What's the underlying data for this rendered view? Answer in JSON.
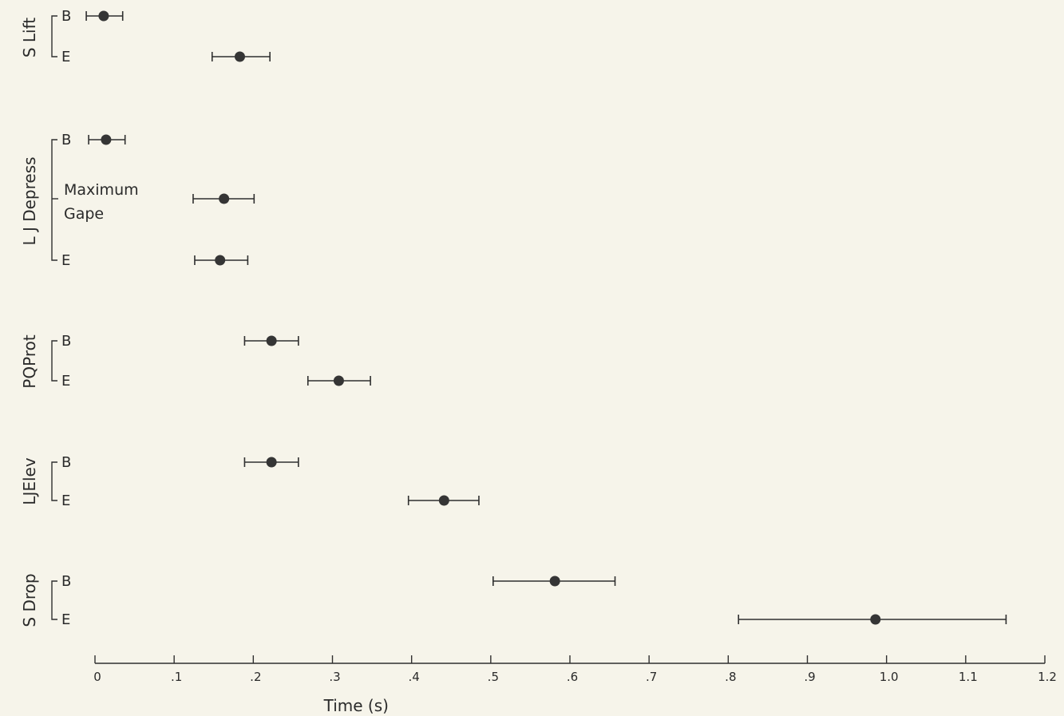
{
  "chart_data": {
    "type": "scatter",
    "title": "",
    "xlabel": "Time (s)",
    "ylabel": "",
    "xlim": [
      0,
      1.2
    ],
    "x_ticks": [
      {
        "value": 0,
        "label": "0"
      },
      {
        "value": 0.1,
        "label": ".1"
      },
      {
        "value": 0.2,
        "label": ".2"
      },
      {
        "value": 0.3,
        "label": ".3"
      },
      {
        "value": 0.4,
        "label": ".4"
      },
      {
        "value": 0.5,
        "label": ".5"
      },
      {
        "value": 0.6,
        "label": ".6"
      },
      {
        "value": 0.7,
        "label": ".7"
      },
      {
        "value": 0.8,
        "label": ".8"
      },
      {
        "value": 0.9,
        "label": ".9"
      },
      {
        "value": 1.0,
        "label": "1.0"
      },
      {
        "value": 1.1,
        "label": "1.1"
      },
      {
        "value": 1.2,
        "label": "1.2"
      }
    ],
    "grid": false,
    "groups": [
      {
        "name": "S Lift",
        "rows": [
          {
            "label": "B",
            "mean": 0.011,
            "low": -0.011,
            "high": 0.035
          },
          {
            "label": "E",
            "mean": 0.183,
            "low": 0.148,
            "high": 0.221
          }
        ]
      },
      {
        "name": "L J Depress",
        "note": "Maximum Gape",
        "rows": [
          {
            "label": "B",
            "mean": 0.014,
            "low": -0.008,
            "high": 0.038
          },
          {
            "label": "",
            "mean": 0.163,
            "low": 0.124,
            "high": 0.201
          },
          {
            "label": "E",
            "mean": 0.158,
            "low": 0.126,
            "high": 0.193
          }
        ]
      },
      {
        "name": "PQProt",
        "rows": [
          {
            "label": "B",
            "mean": 0.223,
            "low": 0.189,
            "high": 0.257
          },
          {
            "label": "E",
            "mean": 0.308,
            "low": 0.269,
            "high": 0.348
          }
        ]
      },
      {
        "name": "LJElev",
        "rows": [
          {
            "label": "B",
            "mean": 0.223,
            "low": 0.189,
            "high": 0.257
          },
          {
            "label": "E",
            "mean": 0.441,
            "low": 0.396,
            "high": 0.485
          }
        ]
      },
      {
        "name": "S Drop",
        "rows": [
          {
            "label": "B",
            "mean": 0.581,
            "low": 0.503,
            "high": 0.657
          },
          {
            "label": "E",
            "mean": 0.986,
            "low": 0.813,
            "high": 1.151
          }
        ]
      }
    ]
  }
}
